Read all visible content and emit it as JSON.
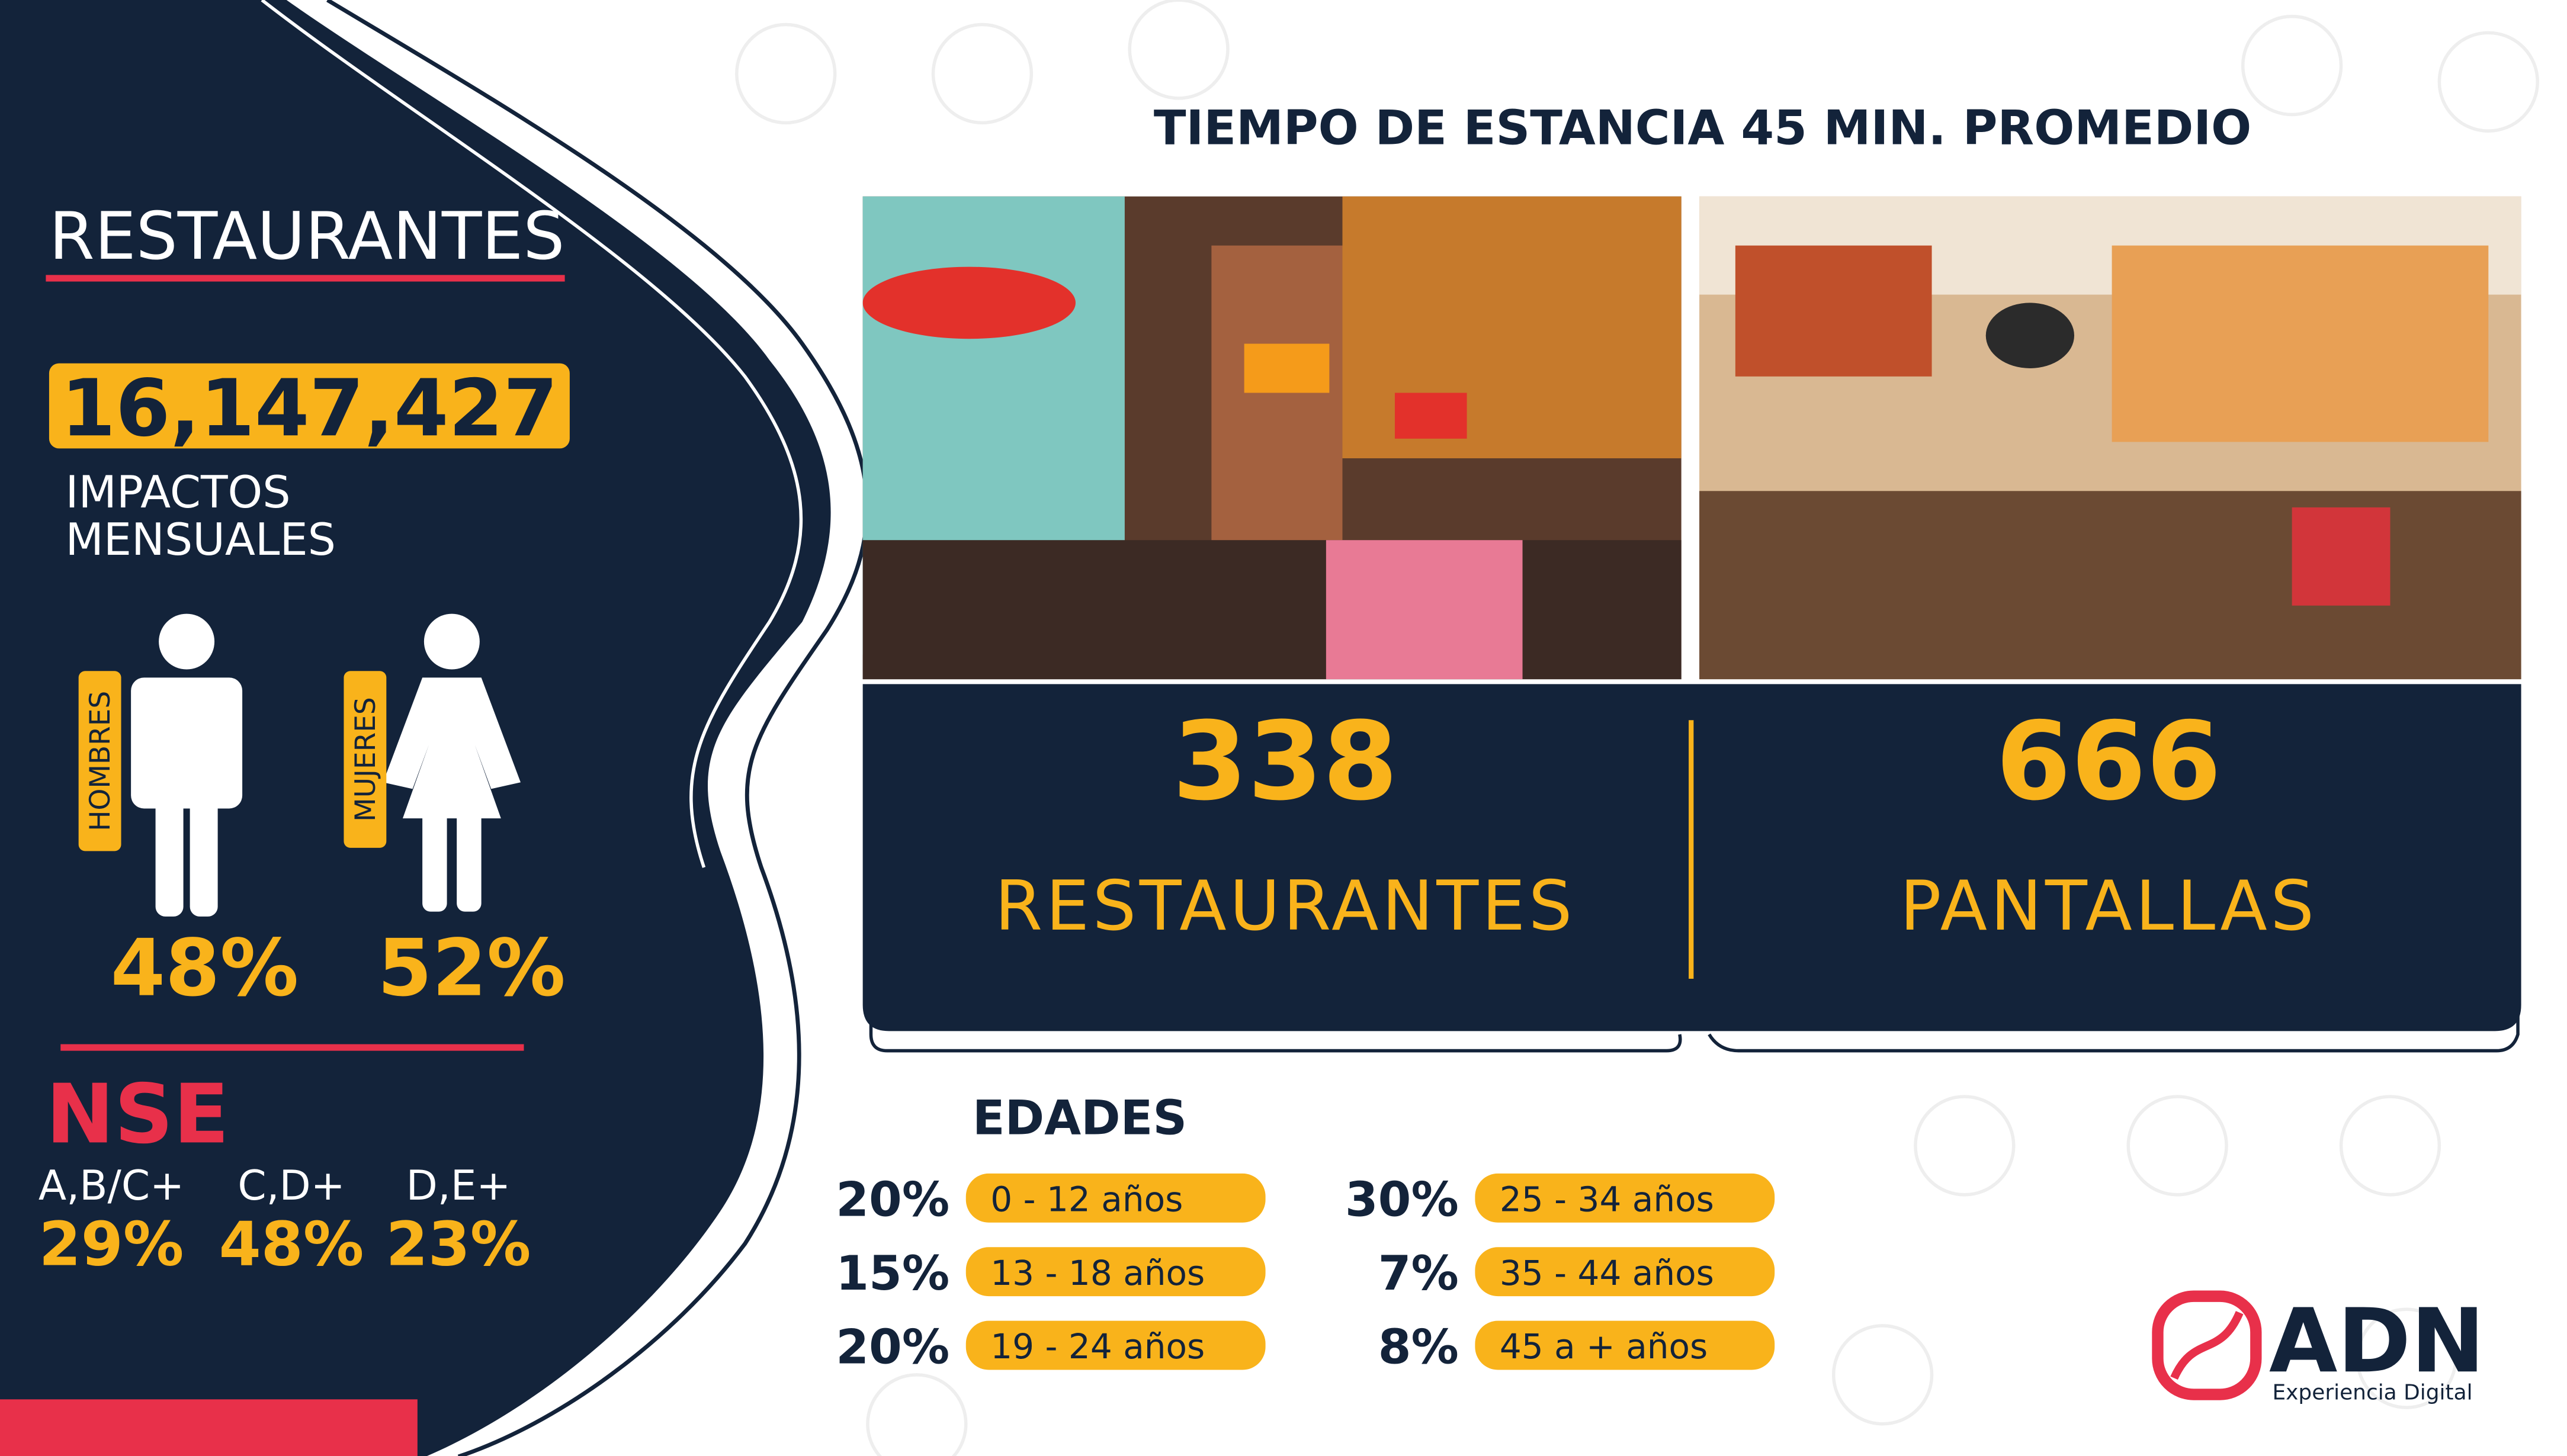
{
  "left": {
    "title": "RESTAURANTES",
    "impacts": "16,147,427",
    "impacts_label": [
      "IMPACTOS",
      "MENSUALES"
    ],
    "gender": [
      {
        "label": "HOMBRES",
        "value": "48%"
      },
      {
        "label": "MUJERES",
        "value": "52%"
      }
    ],
    "nse": {
      "title": "NSE",
      "groups": [
        {
          "label": "A,B/C+",
          "value": "29%"
        },
        {
          "label": "C,D+",
          "value": "48%"
        },
        {
          "label": "D,E+",
          "value": "23%"
        }
      ]
    }
  },
  "header": {
    "title": "TIEMPO DE ESTANCIA 45 MIN. PROMEDIO"
  },
  "stats": [
    {
      "value": "338",
      "label": "RESTAURANTES"
    },
    {
      "value": "666",
      "label": "PANTALLAS"
    }
  ],
  "ages": {
    "title": "EDADES",
    "rows": [
      {
        "percent": "20%",
        "label": "0 - 12 años"
      },
      {
        "percent": "15%",
        "label": "13 - 18 años"
      },
      {
        "percent": "20%",
        "label": "19 - 24 años"
      },
      {
        "percent": "30%",
        "label": "25 - 34 años"
      },
      {
        "percent": "7%",
        "label": "35 - 44 años"
      },
      {
        "percent": "8%",
        "label": "45 a + años"
      }
    ]
  },
  "logo": {
    "name": "ADN",
    "tagline": "Experiencia Digital"
  }
}
